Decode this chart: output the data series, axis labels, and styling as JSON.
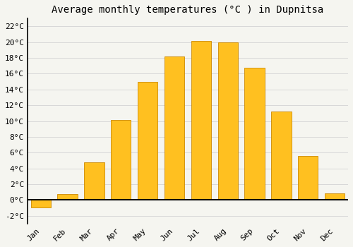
{
  "title": "Average monthly temperatures (°C ) in Dupnitsa",
  "months": [
    "Jan",
    "Feb",
    "Mar",
    "Apr",
    "May",
    "Jun",
    "Jul",
    "Aug",
    "Sep",
    "Oct",
    "Nov",
    "Dec"
  ],
  "values": [
    -1.0,
    0.7,
    4.8,
    10.1,
    15.0,
    18.2,
    20.2,
    20.0,
    16.8,
    11.2,
    5.6,
    0.8
  ],
  "bar_color": "#FFC020",
  "bar_edge_color": "#CC8800",
  "background_color": "#f5f5f0",
  "grid_color": "#d8d8d8",
  "ylim": [
    -3,
    23
  ],
  "yticks": [
    -2,
    0,
    2,
    4,
    6,
    8,
    10,
    12,
    14,
    16,
    18,
    20,
    22
  ],
  "title_fontsize": 10,
  "tick_fontsize": 8,
  "zero_line_color": "#000000",
  "spine_color": "#000000"
}
